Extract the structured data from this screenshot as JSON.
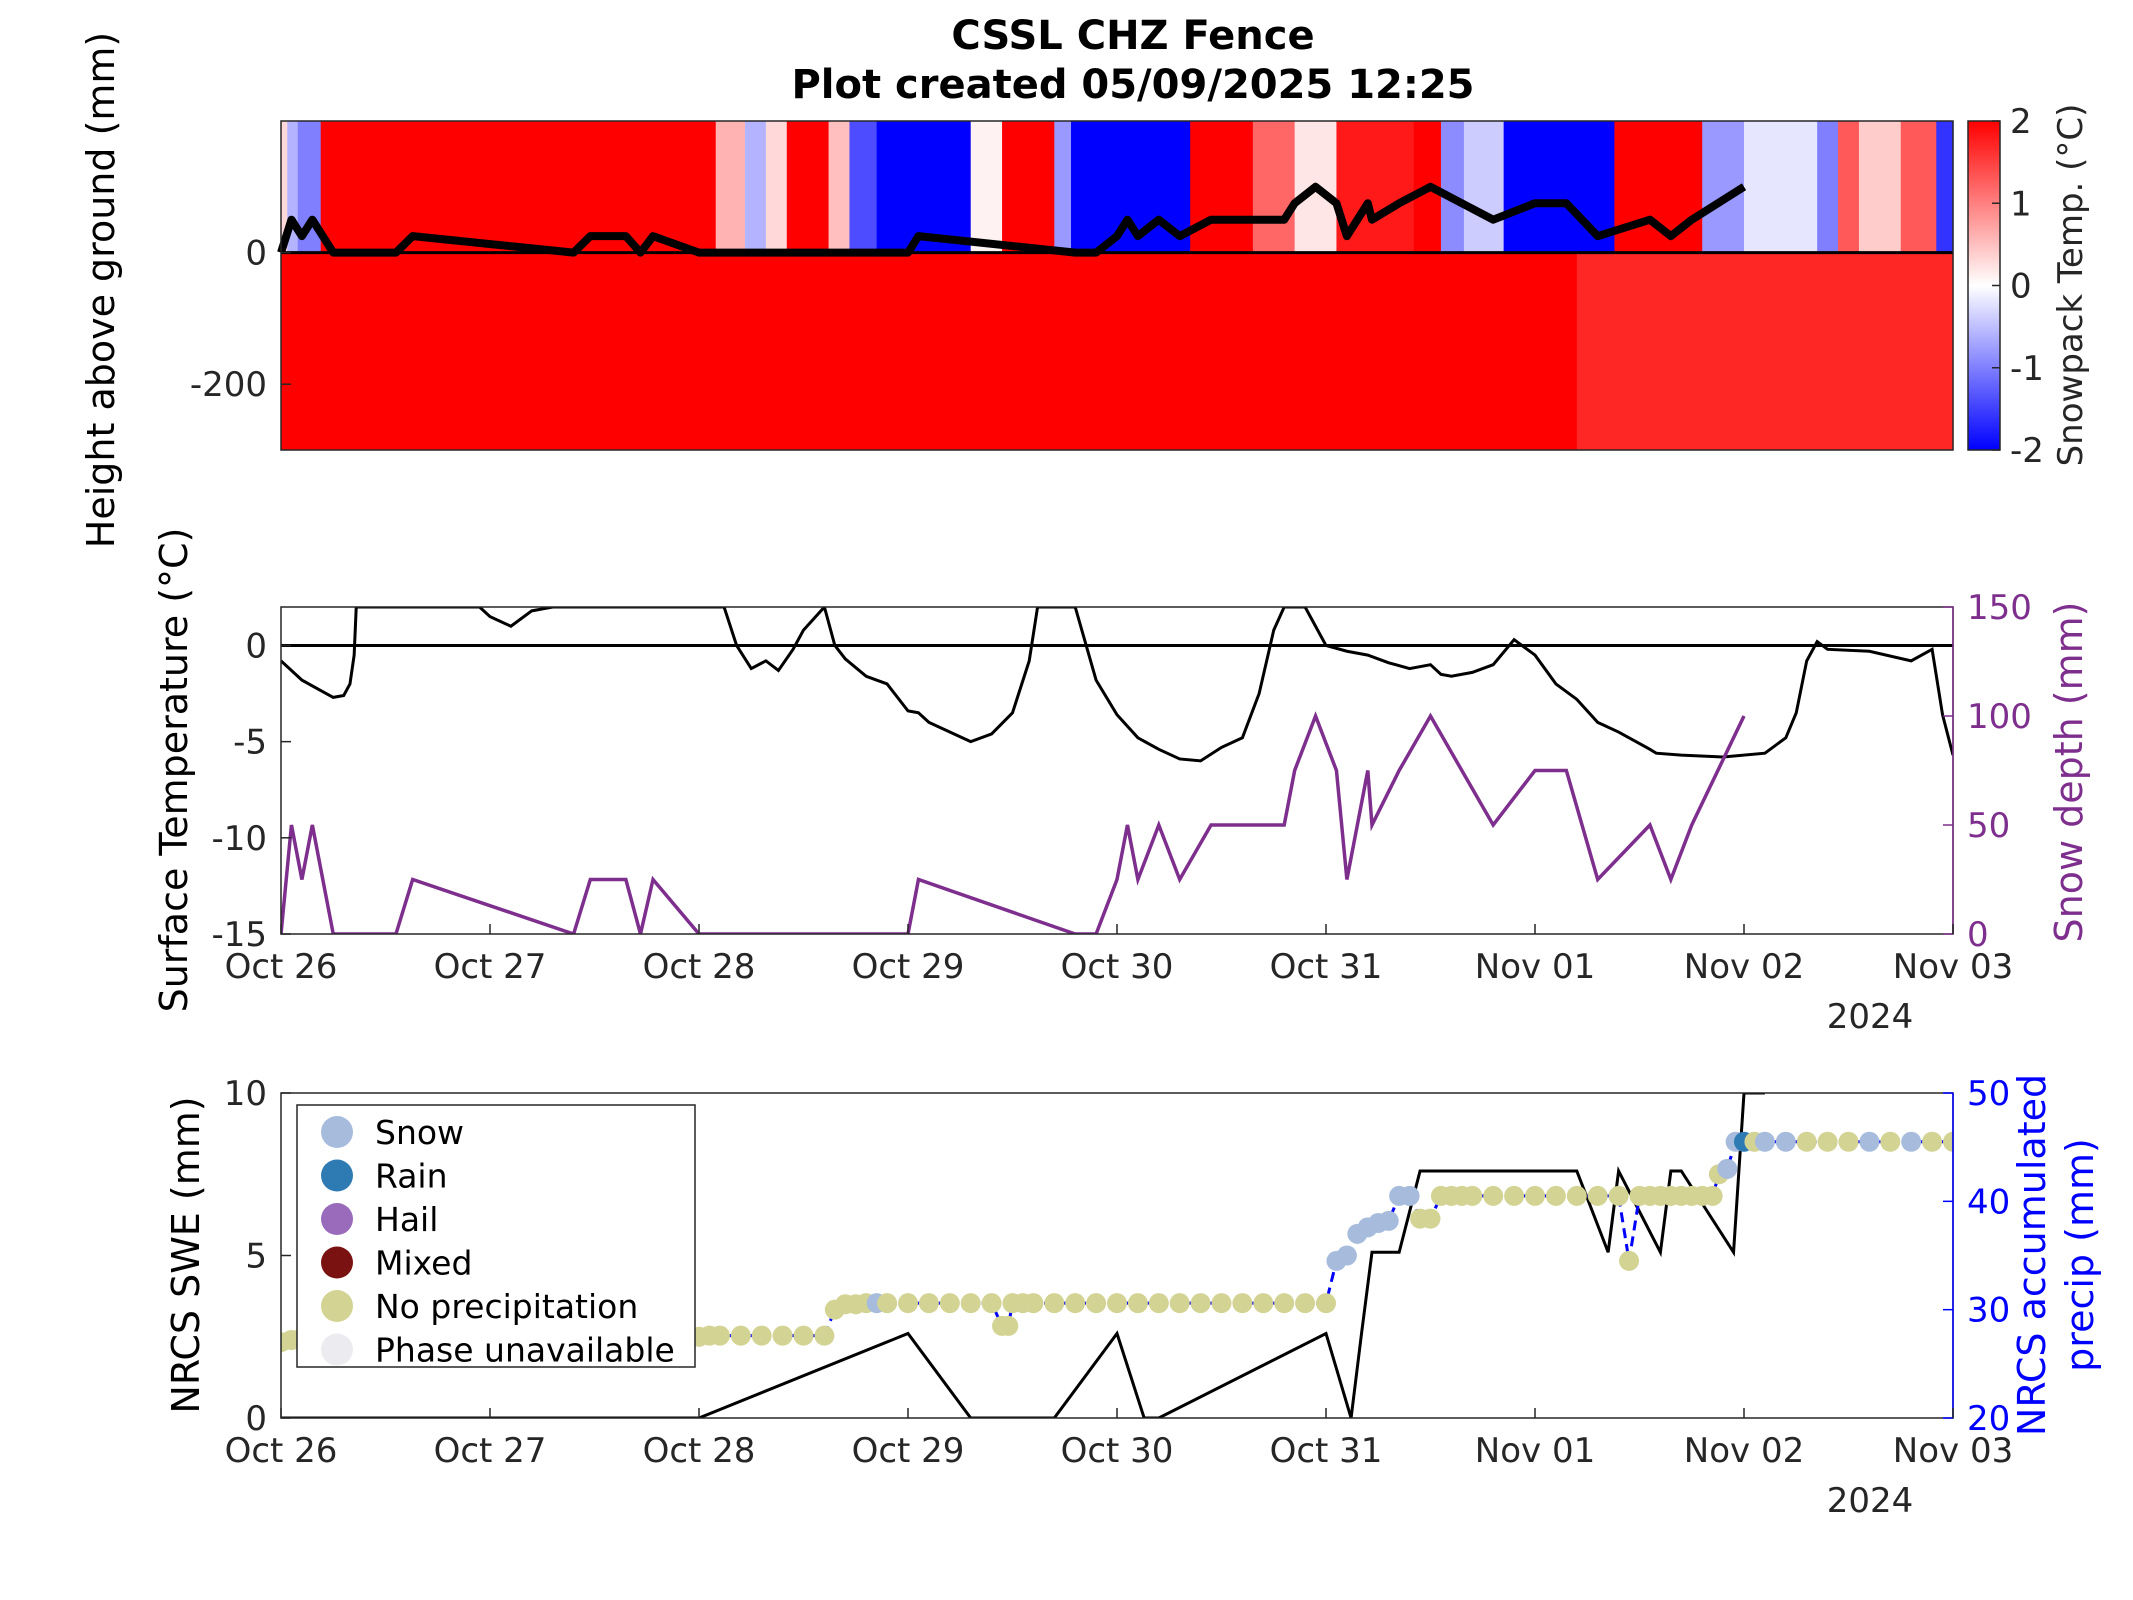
{
  "title": "CSSL CHZ Fence",
  "subtitle": "Plot created 05/09/2025 12:25",
  "colors": {
    "warm": "#ff0000",
    "cold": "#0000ff",
    "snow_depth": "#7e2f8e",
    "precip_axis": "#0000ff",
    "snow_phase": "#a7bcdc",
    "rain_phase": "#2e7bb3",
    "hail_phase": "#9a6bbb",
    "mixed_phase": "#7a1212",
    "no_precip_phase": "#d3d393",
    "unavailable_phase": "#ececf0"
  },
  "chart_data": [
    {
      "type": "heatmap",
      "ylabel": "Height above ground (mm)",
      "colorbar_label": "Snowpack Temp. (°C)",
      "ylim": [
        -300,
        200
      ],
      "yticks": [
        "0",
        "-200"
      ],
      "yticks_values": [
        0,
        -200
      ],
      "clim": [
        -2,
        2
      ],
      "colorbar_ticks": [
        "2",
        "1",
        "0",
        "-1",
        "-2"
      ],
      "xlim": [
        0,
        8
      ],
      "grid": false,
      "surface_temp_bands": [
        {
          "start": 0.0,
          "end": 0.03,
          "temp": 0.3
        },
        {
          "start": 0.03,
          "end": 0.08,
          "temp": -0.6
        },
        {
          "start": 0.08,
          "end": 0.19,
          "temp": -1.0
        },
        {
          "start": 0.19,
          "end": 0.33,
          "temp": 2.0
        },
        {
          "start": 0.33,
          "end": 2.08,
          "temp": 2.0
        },
        {
          "start": 2.08,
          "end": 2.22,
          "temp": 0.6
        },
        {
          "start": 2.22,
          "end": 2.32,
          "temp": -0.6
        },
        {
          "start": 2.32,
          "end": 2.42,
          "temp": 0.3
        },
        {
          "start": 2.42,
          "end": 2.62,
          "temp": 2.0
        },
        {
          "start": 2.62,
          "end": 2.72,
          "temp": 0.5
        },
        {
          "start": 2.72,
          "end": 2.85,
          "temp": -1.4
        },
        {
          "start": 2.85,
          "end": 3.3,
          "temp": -2.0
        },
        {
          "start": 3.3,
          "end": 3.45,
          "temp": 0.1
        },
        {
          "start": 3.45,
          "end": 3.7,
          "temp": 2.0
        },
        {
          "start": 3.7,
          "end": 3.78,
          "temp": -0.8
        },
        {
          "start": 3.78,
          "end": 4.35,
          "temp": -2.0
        },
        {
          "start": 4.35,
          "end": 4.65,
          "temp": 2.0
        },
        {
          "start": 4.65,
          "end": 4.85,
          "temp": 1.2
        },
        {
          "start": 4.85,
          "end": 5.05,
          "temp": 0.2
        },
        {
          "start": 5.05,
          "end": 5.42,
          "temp": 1.8
        },
        {
          "start": 5.42,
          "end": 5.55,
          "temp": 2.0
        },
        {
          "start": 5.55,
          "end": 5.66,
          "temp": -0.9
        },
        {
          "start": 5.66,
          "end": 5.85,
          "temp": -0.4
        },
        {
          "start": 5.85,
          "end": 6.38,
          "temp": -2.0
        },
        {
          "start": 6.38,
          "end": 6.8,
          "temp": 2.0
        },
        {
          "start": 6.8,
          "end": 7.0,
          "temp": -0.8
        },
        {
          "start": 7.0,
          "end": 7.35,
          "temp": -0.2
        },
        {
          "start": 7.35,
          "end": 7.45,
          "temp": -1.0
        },
        {
          "start": 7.45,
          "end": 7.55,
          "temp": 1.3
        },
        {
          "start": 7.55,
          "end": 7.75,
          "temp": 0.4
        },
        {
          "start": 7.75,
          "end": 7.92,
          "temp": 1.3
        },
        {
          "start": 7.92,
          "end": 8.0,
          "temp": -1.6
        }
      ],
      "soil_temp_bands": [
        {
          "start": 0.0,
          "end": 6.2,
          "temp": 2.0
        },
        {
          "start": 6.2,
          "end": 8.0,
          "temp": 1.7
        }
      ],
      "snow_surface_line": {
        "x": [
          0,
          0.05,
          0.1,
          0.15,
          0.2,
          0.25,
          0.32,
          0.55,
          0.63,
          1.4,
          1.48,
          1.65,
          1.72,
          1.78,
          2.0,
          3.0,
          3.05,
          3.8,
          3.9,
          4.0,
          4.05,
          4.1,
          4.2,
          4.3,
          4.45,
          4.8,
          4.85,
          4.95,
          5.05,
          5.1,
          5.2,
          5.22,
          5.35,
          5.5,
          5.65,
          5.8,
          6.0,
          6.15,
          6.3,
          6.55,
          6.65,
          6.75,
          7.0
        ],
        "y": [
          0,
          50,
          25,
          50,
          25,
          0,
          0,
          0,
          25,
          0,
          25,
          25,
          0,
          25,
          0,
          0,
          25,
          0,
          0,
          25,
          50,
          25,
          50,
          25,
          50,
          50,
          75,
          100,
          75,
          25,
          75,
          50,
          75,
          100,
          75,
          50,
          75,
          75,
          25,
          50,
          25,
          50,
          100
        ]
      }
    },
    {
      "type": "line",
      "ylabel": "Surface Temperature (°C)",
      "y2label": "Snow depth (mm)",
      "ylim": [
        -15,
        2
      ],
      "y2lim": [
        0,
        150
      ],
      "yticks": [
        "0",
        "-5",
        "-10",
        "-15"
      ],
      "y2ticks": [
        "150",
        "100",
        "50",
        "0"
      ],
      "xlim": [
        0,
        8
      ],
      "xticks": [
        "Oct 26",
        "Oct 27",
        "Oct 28",
        "Oct 29",
        "Oct 30",
        "Oct 31",
        "Nov 01",
        "Nov 02",
        "Nov 03"
      ],
      "xyear": "2024",
      "grid": false,
      "series": [
        {
          "axis": "left",
          "x": [
            0,
            0.1,
            0.2,
            0.25,
            0.3,
            0.33,
            0.35,
            0.36,
            0.95,
            1.0,
            1.1,
            1.2,
            1.3,
            2.12,
            2.18,
            2.25,
            2.32,
            2.38,
            2.45,
            2.5,
            2.6,
            2.65,
            2.7,
            2.8,
            2.9,
            3.0,
            3.05,
            3.1,
            3.2,
            3.3,
            3.4,
            3.5,
            3.58,
            3.62,
            3.8,
            3.9,
            4.0,
            4.1,
            4.2,
            4.3,
            4.4,
            4.5,
            4.6,
            4.68,
            4.75,
            4.8,
            4.9,
            5.0,
            5.1,
            5.2,
            5.3,
            5.4,
            5.5,
            5.55,
            5.6,
            5.7,
            5.8,
            5.9,
            6.0,
            6.1,
            6.2,
            6.3,
            6.4,
            6.5,
            6.55,
            6.58,
            6.7,
            6.9,
            7.1,
            7.2,
            7.25,
            7.3,
            7.35,
            7.4,
            7.6,
            7.8,
            7.9,
            7.95,
            8.0
          ],
          "y": [
            -0.8,
            -1.8,
            -2.4,
            -2.7,
            -2.6,
            -2.0,
            -0.5,
            2.0,
            2.0,
            1.5,
            1.0,
            1.8,
            2.0,
            2.0,
            0.0,
            -1.2,
            -0.8,
            -1.3,
            -0.2,
            0.8,
            2.0,
            0.0,
            -0.7,
            -1.6,
            -2.0,
            -3.4,
            -3.5,
            -4.0,
            -4.5,
            -5.0,
            -4.6,
            -3.5,
            -0.8,
            2.0,
            2.0,
            -1.8,
            -3.6,
            -4.8,
            -5.4,
            -5.9,
            -6.0,
            -5.3,
            -4.8,
            -2.5,
            0.8,
            2.0,
            2.0,
            0.0,
            -0.3,
            -0.5,
            -0.9,
            -1.2,
            -1.0,
            -1.5,
            -1.6,
            -1.4,
            -1.0,
            0.3,
            -0.5,
            -2.0,
            -2.8,
            -4.0,
            -4.5,
            -5.1,
            -5.4,
            -5.6,
            -5.7,
            -5.8,
            -5.6,
            -4.8,
            -3.5,
            -0.8,
            0.2,
            -0.2,
            -0.3,
            -0.8,
            -0.2,
            -3.6,
            -5.7
          ]
        },
        {
          "axis": "right",
          "name": "snow depth",
          "x": [
            0,
            0.05,
            0.1,
            0.15,
            0.2,
            0.25,
            0.32,
            0.55,
            0.63,
            1.4,
            1.48,
            1.65,
            1.72,
            1.78,
            2.0,
            3.0,
            3.05,
            3.8,
            3.9,
            4.0,
            4.05,
            4.1,
            4.2,
            4.3,
            4.45,
            4.8,
            4.85,
            4.95,
            5.05,
            5.1,
            5.2,
            5.22,
            5.35,
            5.5,
            5.65,
            5.8,
            6.0,
            6.15,
            6.3,
            6.55,
            6.65,
            6.75,
            7.0
          ],
          "y": [
            0,
            50,
            25,
            50,
            25,
            0,
            0,
            0,
            25,
            0,
            25,
            25,
            0,
            25,
            0,
            0,
            25,
            0,
            0,
            25,
            50,
            25,
            50,
            25,
            50,
            50,
            75,
            100,
            75,
            25,
            75,
            50,
            75,
            100,
            75,
            50,
            75,
            75,
            25,
            50,
            25,
            50,
            100
          ]
        }
      ],
      "reference_line": 0
    },
    {
      "type": "scatter",
      "ylabel": "NRCS SWE (mm)",
      "y2label": [
        "NRCS accumulated",
        "precip (mm)"
      ],
      "ylim": [
        0,
        10
      ],
      "y2lim": [
        20,
        50
      ],
      "yticks": [
        "10",
        "5",
        "0"
      ],
      "y2ticks": [
        "50",
        "40",
        "30",
        "20"
      ],
      "xlim": [
        0,
        8
      ],
      "xticks": [
        "Oct 26",
        "Oct 27",
        "Oct 28",
        "Oct 29",
        "Oct 30",
        "Oct 31",
        "Nov 01",
        "Nov 02",
        "Nov 03"
      ],
      "xyear": "2024",
      "grid": false,
      "legend_position": "top-left",
      "legend": [
        "Snow",
        "Rain",
        "Hail",
        "Mixed",
        "No precipitation",
        "Phase unavailable"
      ],
      "swe": {
        "x": [
          0,
          2.0,
          3.0,
          3.3,
          3.7,
          4.0,
          4.13,
          4.2,
          5.0,
          5.12,
          5.17,
          5.22,
          5.35,
          5.45,
          5.5,
          6.2,
          6.35,
          6.4,
          6.6,
          6.65,
          6.7,
          6.95,
          7.0,
          7.1
        ],
        "y": [
          0,
          0,
          2.6,
          0,
          0,
          2.6,
          0,
          0,
          2.6,
          0,
          2.6,
          5.1,
          5.1,
          7.6,
          7.6,
          7.6,
          5.1,
          7.6,
          5.1,
          7.6,
          7.6,
          5.1,
          10,
          10
        ]
      },
      "precip": {
        "x": [
          0,
          0.05,
          0.1,
          0.2,
          1.9,
          2.0,
          2.05,
          2.1,
          2.2,
          2.3,
          2.4,
          2.5,
          2.6,
          2.65,
          2.7,
          2.75,
          2.8,
          2.85,
          2.9,
          3.0,
          3.1,
          3.2,
          3.3,
          3.4,
          3.45,
          3.48,
          3.5,
          3.55,
          3.6,
          3.7,
          3.8,
          3.9,
          4.0,
          4.1,
          4.2,
          4.3,
          4.4,
          4.5,
          4.6,
          4.7,
          4.8,
          4.9,
          5.0,
          5.05,
          5.1,
          5.15,
          5.2,
          5.25,
          5.3,
          5.35,
          5.4,
          5.45,
          5.5,
          5.55,
          5.6,
          5.65,
          5.7,
          5.8,
          5.9,
          6.0,
          6.1,
          6.2,
          6.3,
          6.4,
          6.45,
          6.5,
          6.55,
          6.6,
          6.65,
          6.7,
          6.75,
          6.8,
          6.85,
          6.88,
          6.92,
          6.96,
          7.0,
          7.05,
          7.1,
          7.2,
          7.3,
          7.4,
          7.5,
          7.6,
          7.7,
          7.8,
          7.9,
          8.0
        ],
        "y": [
          27,
          27.2,
          27.4,
          27.5,
          27.5,
          27.5,
          27.6,
          27.6,
          27.6,
          27.6,
          27.6,
          27.6,
          27.6,
          30,
          30.5,
          30.5,
          30.6,
          30.6,
          30.6,
          30.6,
          30.6,
          30.6,
          30.6,
          30.6,
          28.5,
          28.5,
          30.6,
          30.6,
          30.6,
          30.6,
          30.6,
          30.6,
          30.6,
          30.6,
          30.6,
          30.6,
          30.6,
          30.6,
          30.6,
          30.6,
          30.6,
          30.6,
          30.6,
          34.5,
          35,
          37,
          37.6,
          38,
          38.2,
          40.5,
          40.5,
          38.4,
          38.4,
          40.5,
          40.5,
          40.5,
          40.5,
          40.5,
          40.5,
          40.5,
          40.5,
          40.5,
          40.5,
          40.5,
          34.5,
          40.5,
          40.5,
          40.5,
          40.5,
          40.5,
          40.5,
          40.5,
          40.5,
          42.5,
          43,
          45.5,
          45.5,
          45.5,
          45.5,
          45.5,
          45.5,
          45.5,
          45.5,
          45.5,
          45.5,
          45.5,
          45.5,
          45.5
        ],
        "phase": [
          "N",
          "N",
          "N",
          "N",
          "N",
          "N",
          "N",
          "N",
          "N",
          "N",
          "N",
          "N",
          "N",
          "N",
          "N",
          "N",
          "N",
          "S",
          "N",
          "N",
          "N",
          "N",
          "N",
          "N",
          "N",
          "N",
          "N",
          "N",
          "N",
          "N",
          "N",
          "N",
          "N",
          "N",
          "N",
          "N",
          "N",
          "N",
          "N",
          "N",
          "N",
          "N",
          "N",
          "S",
          "S",
          "S",
          "S",
          "S",
          "S",
          "S",
          "S",
          "N",
          "N",
          "N",
          "N",
          "N",
          "N",
          "N",
          "N",
          "N",
          "N",
          "N",
          "N",
          "N",
          "N",
          "N",
          "N",
          "N",
          "N",
          "N",
          "N",
          "N",
          "N",
          "N",
          "S",
          "S",
          "R",
          "N",
          "S",
          "S",
          "N",
          "N",
          "N",
          "S",
          "N",
          "S",
          "N",
          "N"
        ]
      }
    }
  ]
}
